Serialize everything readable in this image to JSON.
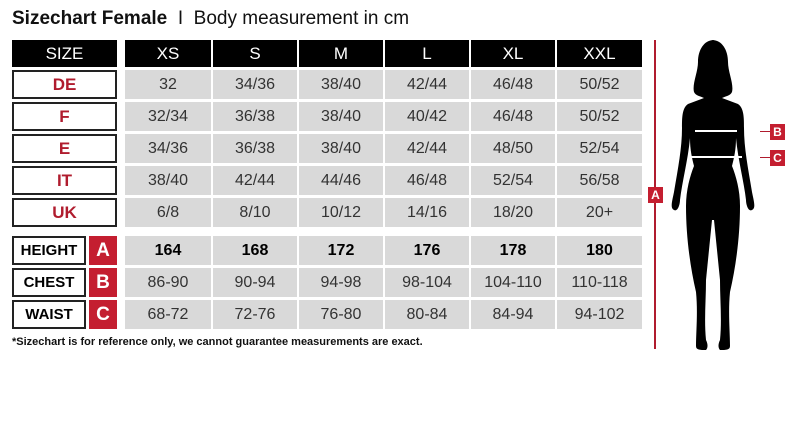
{
  "title": {
    "bold": "Sizechart Female",
    "separator": "I",
    "subtitle": "Body measurement in cm"
  },
  "header": {
    "size_label": "SIZE",
    "sizes": [
      "XS",
      "S",
      "M",
      "L",
      "XL",
      "XXL"
    ]
  },
  "conversion_rows": [
    {
      "label": "DE",
      "values": [
        "32",
        "34/36",
        "38/40",
        "42/44",
        "46/48",
        "50/52"
      ]
    },
    {
      "label": "F",
      "values": [
        "32/34",
        "36/38",
        "38/40",
        "40/42",
        "46/48",
        "50/52"
      ]
    },
    {
      "label": "E",
      "values": [
        "34/36",
        "36/38",
        "38/40",
        "42/44",
        "48/50",
        "52/54"
      ]
    },
    {
      "label": "IT",
      "values": [
        "38/40",
        "42/44",
        "44/46",
        "46/48",
        "52/54",
        "56/58"
      ]
    },
    {
      "label": "UK",
      "values": [
        "6/8",
        "8/10",
        "10/12",
        "14/16",
        "18/20",
        "20+"
      ]
    }
  ],
  "measurement_rows": [
    {
      "label": "HEIGHT",
      "marker": "A",
      "values": [
        "164",
        "168",
        "172",
        "176",
        "178",
        "180"
      ]
    },
    {
      "label": "CHEST",
      "marker": "B",
      "values": [
        "86-90",
        "90-94",
        "94-98",
        "98-104",
        "104-110",
        "110-118"
      ]
    },
    {
      "label": "WAIST",
      "marker": "C",
      "values": [
        "68-72",
        "72-76",
        "76-80",
        "80-84",
        "84-94",
        "94-102"
      ]
    }
  ],
  "footnote": "*Sizechart is for reference only, we cannot guarantee measurements are exact.",
  "figure": {
    "height_marker": "A",
    "chest_marker": "B",
    "waist_marker": "C"
  },
  "colors": {
    "accent": "#c41e30",
    "header": "#000000",
    "cell": "#d9d9d9"
  }
}
